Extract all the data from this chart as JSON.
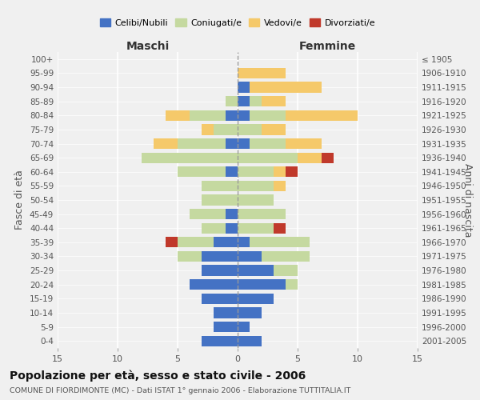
{
  "age_groups": [
    "0-4",
    "5-9",
    "10-14",
    "15-19",
    "20-24",
    "25-29",
    "30-34",
    "35-39",
    "40-44",
    "45-49",
    "50-54",
    "55-59",
    "60-64",
    "65-69",
    "70-74",
    "75-79",
    "80-84",
    "85-89",
    "90-94",
    "95-99",
    "100+"
  ],
  "birth_years": [
    "2001-2005",
    "1996-2000",
    "1991-1995",
    "1986-1990",
    "1981-1985",
    "1976-1980",
    "1971-1975",
    "1966-1970",
    "1961-1965",
    "1956-1960",
    "1951-1955",
    "1946-1950",
    "1941-1945",
    "1936-1940",
    "1931-1935",
    "1926-1930",
    "1921-1925",
    "1916-1920",
    "1911-1915",
    "1906-1910",
    "≤ 1905"
  ],
  "male": {
    "celibi": [
      3,
      2,
      2,
      3,
      4,
      3,
      3,
      2,
      1,
      1,
      0,
      0,
      1,
      0,
      1,
      0,
      1,
      0,
      0,
      0,
      0
    ],
    "coniugati": [
      0,
      0,
      0,
      0,
      0,
      0,
      2,
      3,
      2,
      3,
      3,
      3,
      4,
      8,
      4,
      2,
      3,
      1,
      0,
      0,
      0
    ],
    "vedovi": [
      0,
      0,
      0,
      0,
      0,
      0,
      0,
      0,
      0,
      0,
      0,
      0,
      0,
      0,
      2,
      1,
      2,
      0,
      0,
      0,
      0
    ],
    "divorziati": [
      0,
      0,
      0,
      0,
      0,
      0,
      0,
      1,
      0,
      0,
      0,
      0,
      0,
      0,
      0,
      0,
      0,
      0,
      0,
      0,
      0
    ]
  },
  "female": {
    "nubili": [
      2,
      1,
      2,
      3,
      4,
      3,
      2,
      1,
      0,
      0,
      0,
      0,
      0,
      0,
      1,
      0,
      1,
      1,
      1,
      0,
      0
    ],
    "coniugate": [
      0,
      0,
      0,
      0,
      1,
      2,
      4,
      5,
      3,
      4,
      3,
      3,
      3,
      5,
      3,
      2,
      3,
      1,
      0,
      0,
      0
    ],
    "vedove": [
      0,
      0,
      0,
      0,
      0,
      0,
      0,
      0,
      0,
      0,
      0,
      1,
      1,
      2,
      3,
      2,
      6,
      2,
      6,
      4,
      0
    ],
    "divorziate": [
      0,
      0,
      0,
      0,
      0,
      0,
      0,
      0,
      1,
      0,
      0,
      0,
      1,
      1,
      0,
      0,
      0,
      0,
      0,
      0,
      0
    ]
  },
  "colors": {
    "celibi_nubili": "#4472c4",
    "coniugati": "#c5d9a0",
    "vedovi": "#f5c96a",
    "divorziati": "#c0392b"
  },
  "xlim": 15,
  "title": "Popolazione per età, sesso e stato civile - 2006",
  "subtitle": "COMUNE DI FIORDIMONTE (MC) - Dati ISTAT 1° gennaio 2006 - Elaborazione TUTTITALIA.IT",
  "ylabel_left": "Fasce di età",
  "ylabel_right": "Anni di nascita",
  "xlabel_left": "Maschi",
  "xlabel_right": "Femmine",
  "legend_labels": [
    "Celibi/Nubili",
    "Coniugati/e",
    "Vedovi/e",
    "Divorziati/e"
  ],
  "background_color": "#f0f0f0"
}
